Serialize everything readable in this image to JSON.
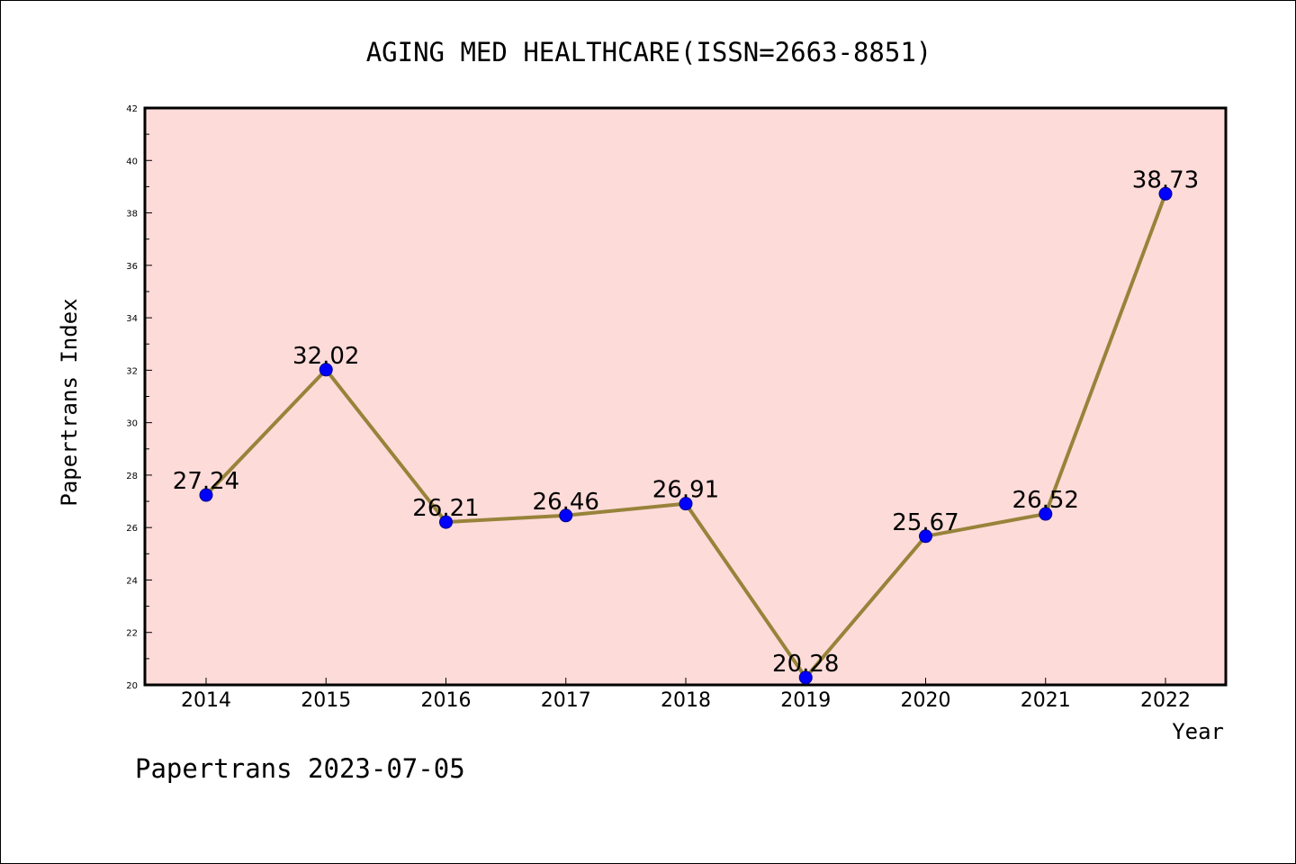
{
  "chart_data": {
    "type": "line",
    "title": "AGING MED HEALTHCARE(ISSN=2663-8851)",
    "xlabel": "Year",
    "ylabel": "Papertrans Index",
    "categories": [
      "2014",
      "2015",
      "2016",
      "2017",
      "2018",
      "2019",
      "2020",
      "2021",
      "2022"
    ],
    "series": [
      {
        "values": [
          27.24,
          32.02,
          26.21,
          26.46,
          26.91,
          20.28,
          25.67,
          26.52,
          38.73
        ]
      }
    ],
    "data_labels": [
      "27.24",
      "32.02",
      "26.21",
      "26.46",
      "26.91",
      "20.28",
      "25.67",
      "26.52",
      "38.73"
    ],
    "ylim": [
      20,
      42
    ],
    "yticks": [
      20,
      22,
      24,
      26,
      28,
      30,
      32,
      34,
      36,
      38,
      40,
      42
    ],
    "grid": false,
    "legend": "none",
    "colors": {
      "plot_background": "#fddbd9",
      "line": "#97833a",
      "marker": "#0000ff",
      "axes": "#000000"
    }
  },
  "footer": {
    "text": "Papertrans 2023-07-05"
  }
}
